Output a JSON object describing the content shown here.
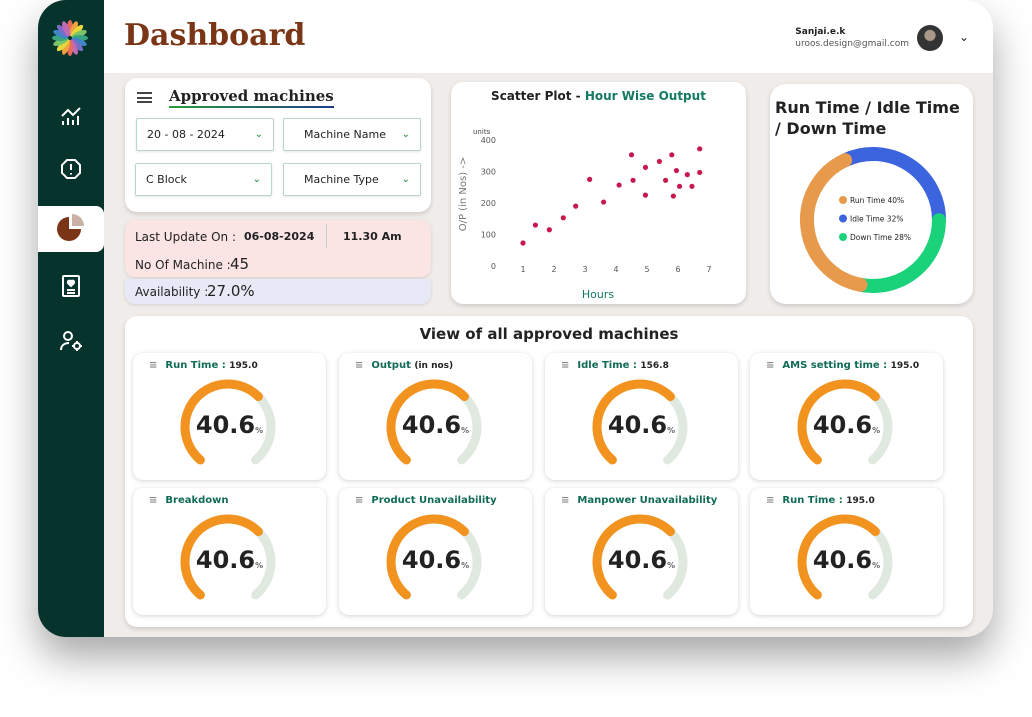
{
  "header": {
    "title": "Dashboard",
    "user_name": "Sanjai.e.k",
    "user_email": "uroos.design@gmail.com"
  },
  "sidebar": {
    "items": [
      {
        "name": "analytics"
      },
      {
        "name": "alerts"
      },
      {
        "name": "reports",
        "active": true
      },
      {
        "name": "health-report"
      },
      {
        "name": "user-settings"
      }
    ]
  },
  "filters": {
    "title": "Approved machines",
    "date": "20 - 08 - 2024",
    "machine_name": "Machine Name",
    "block": "C Block",
    "machine_type": "Machine Type"
  },
  "status": {
    "last_update_label": "Last Update On :",
    "last_update_date": "06-08-2024",
    "last_update_time": "11.30 Am",
    "machines_label": "No Of Machine :",
    "machines_value": "45",
    "availability_label": "Availability :",
    "availability_value": "27.0%"
  },
  "chart_data": [
    {
      "type": "scatter",
      "title": "Scatter Plot - ",
      "title_accent": "Hour Wise Output",
      "xlabel": "Hours",
      "ylabel": "O/P (in Nos) ->",
      "yunit": "units",
      "xlim": [
        0.5,
        7
      ],
      "ylim": [
        0,
        400
      ],
      "xticks": [
        "1",
        "2",
        "3",
        "4",
        "5",
        "6",
        "7"
      ],
      "yticks": [
        "0",
        "100",
        "200",
        "300",
        "400"
      ],
      "points": [
        [
          1.0,
          73
        ],
        [
          1.4,
          130
        ],
        [
          1.85,
          115
        ],
        [
          2.3,
          153
        ],
        [
          2.7,
          190
        ],
        [
          3.15,
          275
        ],
        [
          3.6,
          203
        ],
        [
          4.1,
          257
        ],
        [
          4.5,
          353
        ],
        [
          4.55,
          272
        ],
        [
          4.95,
          313
        ],
        [
          4.95,
          225
        ],
        [
          5.4,
          332
        ],
        [
          5.6,
          272
        ],
        [
          5.8,
          353
        ],
        [
          5.85,
          222
        ],
        [
          5.95,
          303
        ],
        [
          6.05,
          253
        ],
        [
          6.3,
          290
        ],
        [
          6.45,
          253
        ],
        [
          6.7,
          372
        ],
        [
          6.7,
          297
        ]
      ],
      "color": "#c8194f"
    },
    {
      "type": "pie",
      "title": "Run Time  /  Idle Time / Down Time",
      "slices": [
        {
          "label": "Idle Time 32%",
          "value": 32,
          "color": "#3b64de"
        },
        {
          "label": "Down Time 28%",
          "value": 28,
          "color": "#19d27a"
        },
        {
          "label": "Run Time 40%",
          "value": 40,
          "color": "#e89a4c"
        }
      ],
      "legend_order": [
        2,
        0,
        1
      ]
    }
  ],
  "machines": {
    "title": "View of all approved machines",
    "gauges": [
      {
        "label": "Run Time :",
        "value_text": "195.0",
        "percent": "40.6"
      },
      {
        "label": "Output",
        "value_text": "(in nos)",
        "percent": "40.6"
      },
      {
        "label": "Idle Time :",
        "value_text": "156.8",
        "percent": "40.6"
      },
      {
        "label": "AMS setting time :",
        "value_text": "195.0",
        "percent": "40.6"
      },
      {
        "label": "Breakdown",
        "value_text": "",
        "percent": "40.6"
      },
      {
        "label": "Product  Unavailability",
        "value_text": "",
        "percent": "40.6"
      },
      {
        "label": "Manpower  Unavailability",
        "value_text": "",
        "percent": "40.6"
      },
      {
        "label": "Run Time :",
        "value_text": "195.0",
        "percent": "40.6"
      }
    ],
    "pct_sign": "%"
  }
}
